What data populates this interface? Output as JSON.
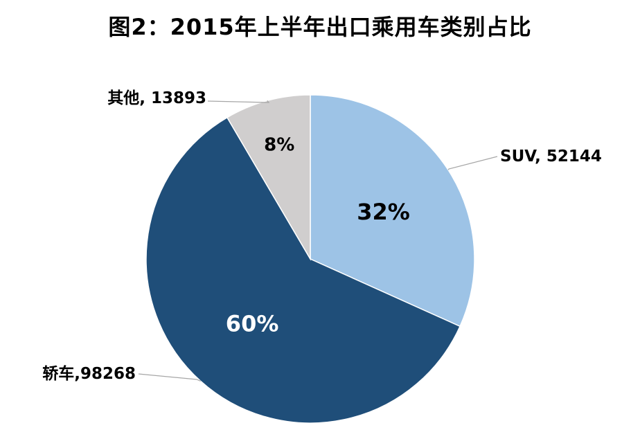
{
  "chart_data": {
    "type": "pie",
    "title": "图2：2015年上半年出口乘用车类别占比",
    "slices": [
      {
        "category": "SUV",
        "value": 52144,
        "percent_label": "32%",
        "data_label": "SUV, 52144",
        "color": "#9dc3e6",
        "text_color": "#000000"
      },
      {
        "category": "轿车",
        "value": 98268,
        "percent_label": "60%",
        "data_label": "轿车,98268",
        "color": "#1f4e79",
        "text_color": "#ffffff"
      },
      {
        "category": "其他",
        "value": 13893,
        "percent_label": "8%",
        "data_label": "其他, 13893",
        "color": "#d0cece",
        "text_color": "#000000"
      }
    ],
    "start_angle": "12 o'clock",
    "direction": "clockwise",
    "legend": "none"
  }
}
